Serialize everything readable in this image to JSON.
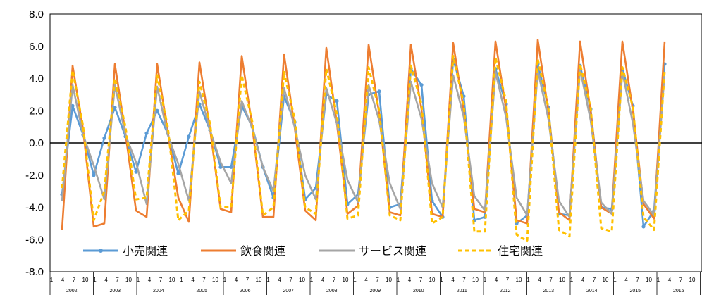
{
  "chart_data": {
    "type": "line",
    "title": "",
    "xlabel": "",
    "ylabel": "",
    "ylim": [
      -8.0,
      8.0
    ],
    "ytick_step": 2.0,
    "y_tick_labels": [
      "8.0",
      "6.0",
      "4.0",
      "2.0",
      "0.0",
      "-2.0",
      "-4.0",
      "-6.0",
      "-8.0"
    ],
    "grid": false,
    "legend_position": "bottom-left-inside",
    "x_month_ticks": [
      "1",
      "4",
      "7",
      "10"
    ],
    "years": [
      "2002",
      "2003",
      "2004",
      "2005",
      "2006",
      "2007",
      "2008",
      "2009",
      "2010",
      "2011",
      "2012",
      "2013",
      "2014",
      "2015",
      "2016"
    ],
    "x_unit": "quarterly (Jan, Apr, Jul, Oct per year)",
    "series": [
      {
        "name": "小売関連",
        "color": "#5B9BD5",
        "style": "solid-markers",
        "values": [
          -3.2,
          2.3,
          0.5,
          -2.0,
          0.3,
          2.2,
          0.4,
          -1.8,
          0.6,
          2.0,
          0.6,
          -1.9,
          0.4,
          2.4,
          0.8,
          -1.5,
          -1.5,
          2.3,
          1.0,
          -1.5,
          -3.4,
          2.9,
          1.3,
          -3.5,
          -2.8,
          3.0,
          2.6,
          -3.8,
          -3.2,
          3.0,
          3.2,
          -4.0,
          -3.8,
          4.6,
          3.6,
          -3.6,
          -4.6,
          5.2,
          2.9,
          -4.8,
          -4.6,
          4.6,
          2.4,
          -5.0,
          -4.5,
          4.9,
          2.2,
          -4.4,
          -4.5,
          4.8,
          2.1,
          -4.0,
          -4.1,
          4.6,
          2.3,
          -5.2,
          -4.2,
          4.9
        ]
      },
      {
        "name": "飲食関連",
        "color": "#ED7D31",
        "style": "solid",
        "values": [
          -5.4,
          4.8,
          0.8,
          -5.2,
          -5.0,
          4.9,
          0.6,
          -4.2,
          -4.6,
          4.9,
          0.7,
          -3.4,
          -4.9,
          5.0,
          0.9,
          -4.1,
          -4.3,
          5.4,
          1.0,
          -4.6,
          -4.6,
          5.5,
          1.0,
          -4.2,
          -4.8,
          5.9,
          1.2,
          -4.4,
          -3.9,
          6.1,
          1.8,
          -4.3,
          -4.5,
          6.1,
          2.1,
          -4.4,
          -4.6,
          6.2,
          2.0,
          -4.1,
          -4.3,
          6.3,
          2.1,
          -4.8,
          -5.0,
          6.4,
          2.0,
          -4.3,
          -4.8,
          6.3,
          2.0,
          -4.0,
          -4.4,
          6.3,
          2.0,
          -3.8,
          -4.7,
          6.3
        ]
      },
      {
        "name": "サービス関連",
        "color": "#A5A5A5",
        "style": "solid",
        "values": [
          -3.6,
          3.6,
          0.5,
          -1.4,
          -3.5,
          3.6,
          0.5,
          -1.2,
          -3.8,
          3.5,
          0.5,
          -1.3,
          -3.6,
          3.2,
          0.8,
          -1.2,
          -2.5,
          2.6,
          0.9,
          -1.5,
          -3.0,
          3.4,
          1.0,
          -2.0,
          -3.5,
          3.4,
          1.2,
          -2.3,
          -3.7,
          3.6,
          1.4,
          -2.5,
          -4.1,
          3.8,
          1.5,
          -2.5,
          -4.0,
          4.2,
          1.6,
          -3.3,
          -4.2,
          4.4,
          1.6,
          -3.4,
          -4.5,
          4.5,
          1.5,
          -3.6,
          -4.6,
          4.6,
          1.4,
          -3.7,
          -4.4,
          4.4,
          1.2,
          -3.6,
          -4.5,
          4.4
        ]
      },
      {
        "name": "住宅関連",
        "color": "#FFC000",
        "style": "dashed",
        "values": [
          -2.8,
          4.5,
          1.0,
          -4.8,
          -3.0,
          4.0,
          1.0,
          -3.5,
          -3.4,
          4.2,
          1.0,
          -4.8,
          -4.2,
          3.8,
          1.2,
          -4.0,
          -4.0,
          4.2,
          1.3,
          -4.5,
          -4.0,
          4.4,
          1.5,
          -4.0,
          -4.4,
          4.6,
          1.8,
          -4.7,
          -4.5,
          4.7,
          2.0,
          -4.5,
          -4.8,
          4.8,
          2.4,
          -5.0,
          -4.6,
          5.4,
          2.4,
          -5.5,
          -5.5,
          5.3,
          2.6,
          -5.7,
          -6.1,
          5.2,
          2.2,
          -5.4,
          -5.8,
          4.9,
          2.2,
          -5.3,
          -5.5,
          4.7,
          2.2,
          -4.6,
          -5.4,
          4.5
        ]
      }
    ]
  }
}
